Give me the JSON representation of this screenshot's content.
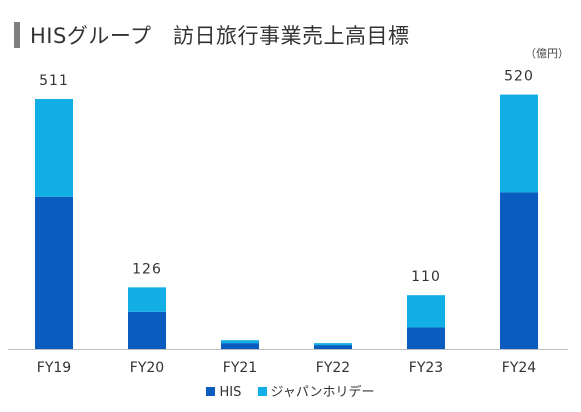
{
  "title": "HISグループ　訪日旅行事業売上高目標",
  "unit": "（億円）",
  "colors": {
    "title_bar": "#7f7f7f",
    "axis": "#bfbfbf",
    "text": "#333333"
  },
  "chart_data": {
    "type": "bar",
    "stacked": true,
    "title": "HISグループ　訪日旅行事業売上高目標",
    "xlabel": "",
    "ylabel": "",
    "ylim": [
      0,
      560
    ],
    "grid": false,
    "legend_position": "bottom",
    "categories": [
      "FY19",
      "FY20",
      "FY21",
      "FY22",
      "FY23",
      "FY24"
    ],
    "series": [
      {
        "name": "HIS",
        "color": "#0a5dbe",
        "values": [
          311,
          76,
          12,
          8,
          44,
          320
        ]
      },
      {
        "name": "ジャパンホリデー",
        "color": "#12aee6",
        "values": [
          200,
          50,
          6,
          4,
          66,
          200
        ]
      }
    ],
    "totals": [
      511,
      126,
      18,
      12,
      110,
      520
    ],
    "total_labels": [
      "511",
      "126",
      "",
      "",
      "110",
      "520"
    ]
  }
}
